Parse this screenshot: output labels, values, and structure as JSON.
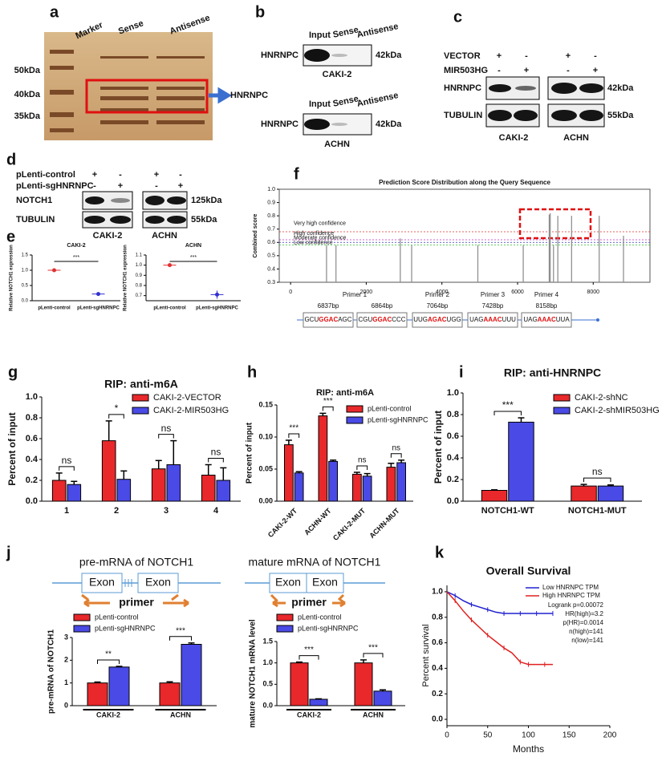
{
  "figure": {
    "letters": [
      "a",
      "b",
      "c",
      "d",
      "e",
      "f",
      "g",
      "h",
      "i",
      "j",
      "k"
    ],
    "a": {
      "lanes": [
        "Marker",
        "Sense",
        "Antisense"
      ],
      "markers": [
        "50kDa",
        "40kDa",
        "35kDa"
      ],
      "target": "HNRNPC"
    },
    "b": {
      "lanes": [
        "Input",
        "Sense",
        "Antisense"
      ],
      "protein": "HNRNPC",
      "size": "42kDa",
      "cells": [
        "CAKI-2",
        "ACHN"
      ]
    },
    "c": {
      "conditions": [
        "VECTOR",
        "MIR503HG"
      ],
      "signs": [
        [
          "+",
          "-",
          "+",
          "-"
        ],
        [
          "-",
          "+",
          "-",
          "+"
        ]
      ],
      "proteins": [
        "HNRNPC",
        "TUBULIN"
      ],
      "sizes": [
        "42kDa",
        "55kDa"
      ],
      "cells": [
        "CAKI-2",
        "ACHN"
      ]
    },
    "d": {
      "conditions": [
        "pLenti-control",
        "pLenti-sgHNRNPC"
      ],
      "signs": [
        [
          "+",
          "-",
          "+",
          "-"
        ],
        [
          "-",
          "+",
          "-",
          "+"
        ]
      ],
      "proteins": [
        "NOTCH1",
        "TUBULIN"
      ],
      "sizes": [
        "125kDa",
        "55kDa"
      ],
      "cells": [
        "CAKI-2",
        "ACHN"
      ]
    },
    "j": {
      "pre_title": "pre-mRNA of NOTCH1",
      "mature_title": "mature mRNA of NOTCH1",
      "exon": "Exon",
      "primer": "primer"
    }
  },
  "chart_data": [
    {
      "type": "dot",
      "title": "CAKI-2",
      "ylabel": "Relative NOTCH1 expression",
      "categories": [
        "pLenti-control",
        "pLenti-sgHNRNPC"
      ],
      "values": [
        1.0,
        0.22
      ],
      "errors": [
        0.04,
        0.01
      ],
      "colors": [
        "#e03030",
        "#3030d0"
      ],
      "significance": "***",
      "ylim": [
        0,
        1.5
      ],
      "yticks": [
        {
          "value": 0,
          "label": "0.0"
        },
        0.5,
        {
          "value": 1,
          "label": "1.0"
        },
        1.5
      ]
    },
    {
      "type": "dot",
      "title": "ACHN",
      "ylabel": "Relative NOTCH1 expression",
      "categories": [
        "pLenti-control",
        "pLenti-sgHNRNPC"
      ],
      "values": [
        1.0,
        0.71
      ],
      "errors": [
        0.005,
        0.04
      ],
      "colors": [
        "#e03030",
        "#3030d0"
      ],
      "significance": "***",
      "ylim": [
        0.65,
        1.1
      ],
      "yticks": [
        0.7,
        0.8,
        0.9,
        {
          "value": 1,
          "label": "1.0"
        },
        1.1
      ]
    },
    {
      "type": "spike",
      "title": "Prediction Score Distribution along the Query Sequence",
      "ylabel": "Combined score",
      "color": "#888888",
      "x": [
        950,
        1200,
        2900,
        3200,
        4950,
        6150,
        6837,
        6864,
        6950,
        7064,
        7428,
        8158,
        8800
      ],
      "values": [
        0.58,
        0.58,
        0.63,
        0.58,
        0.58,
        0.58,
        0.81,
        0.82,
        0.58,
        0.8,
        0.8,
        0.8,
        0.65
      ],
      "xlim": [
        -300,
        9500
      ],
      "xticks": [
        0,
        2000,
        4000,
        6000,
        8000
      ],
      "ylim": [
        0.3,
        1.0
      ],
      "yticks": [
        0.3,
        0.4,
        0.5,
        0.6,
        0.7,
        0.8,
        0.9,
        {
          "value": 1,
          "label": "1.0"
        }
      ],
      "thresholds": [
        {
          "label": "Very high confidence",
          "value": 0.68,
          "color": "#e03030"
        },
        {
          "label": "High confidence",
          "value": 0.62,
          "color": "#c030c0"
        },
        {
          "label": "Moderate confidence",
          "value": 0.6,
          "color": "#3030c0"
        },
        {
          "label": "Low confidence",
          "value": 0.58,
          "color": "#30c030"
        }
      ],
      "primer_names": [
        "Primer 1",
        "Primer 2",
        "Primer 3",
        "Primer 4"
      ],
      "sites": [
        {
          "position": "6837bp",
          "pre": "GCU",
          "motif": "GGAC",
          "post": "AGC"
        },
        {
          "position": "6864bp",
          "pre": "CGU",
          "motif": "GGAC",
          "post": "CCC"
        },
        {
          "position": "7064bp",
          "pre": "UUG",
          "motif": "AGAC",
          "post": "UGG"
        },
        {
          "position": "7428bp",
          "pre": "UAG",
          "motif": "AAAC",
          "post": "UUU"
        },
        {
          "position": "8158bp",
          "pre": "UAG",
          "motif": "AAAC",
          "post": "UUA"
        }
      ]
    },
    {
      "type": "bar",
      "title": "RIP: anti-m6A",
      "ylabel": "Percent of input",
      "categories": [
        "1",
        "2",
        "3",
        "4"
      ],
      "series": [
        {
          "name": "CAKI-2-VECTOR",
          "color": "#e8282b",
          "values": [
            0.2,
            0.58,
            0.31,
            0.25
          ],
          "errors": [
            0.07,
            0.19,
            0.08,
            0.1
          ]
        },
        {
          "name": "CAKI-2-MIR503HG",
          "color": "#4a4ae6",
          "values": [
            0.16,
            0.21,
            0.35,
            0.2
          ],
          "errors": [
            0.03,
            0.08,
            0.23,
            0.12
          ]
        }
      ],
      "significance": [
        "ns",
        "*",
        "ns",
        "ns"
      ],
      "ylim": [
        0,
        1.0
      ],
      "yticks": [
        {
          "value": 0,
          "label": "0.0"
        },
        0.2,
        0.4,
        0.6,
        0.8,
        {
          "value": 1,
          "label": "1.0"
        }
      ]
    },
    {
      "type": "bar",
      "title": "RIP: anti-m6A",
      "ylabel": "Percent of input",
      "categories": [
        "CAKI-2-WT",
        "ACHN-WT",
        "CAKI-2-MUT",
        "ACHN-MUT"
      ],
      "series": [
        {
          "name": "pLenti-control",
          "color": "#e8282b",
          "values": [
            0.088,
            0.133,
            0.042,
            0.053
          ],
          "errors": [
            0.007,
            0.004,
            0.003,
            0.006
          ]
        },
        {
          "name": "pLenti-sgHNRNPC",
          "color": "#4a4ae6",
          "values": [
            0.044,
            0.062,
            0.039,
            0.06
          ],
          "errors": [
            0.002,
            0.002,
            0.004,
            0.004
          ]
        }
      ],
      "significance": [
        "***",
        "***",
        "ns",
        "ns"
      ],
      "ylim": [
        0,
        0.15
      ],
      "yticks": [
        {
          "value": 0,
          "label": "0.00"
        },
        0.05,
        {
          "value": 0.1,
          "label": "0.10"
        },
        0.15
      ]
    },
    {
      "type": "bar",
      "title": "RIP: anti-HNRNPC",
      "ylabel": "Percent of input",
      "categories": [
        "NOTCH1-WT",
        "NOTCH1-MUT"
      ],
      "series": [
        {
          "name": "CAKI-2-shNC",
          "color": "#e8282b",
          "values": [
            0.1,
            0.14
          ],
          "errors": [
            0.005,
            0.015
          ]
        },
        {
          "name": "CAKI-2-shMIR503HG",
          "color": "#4a4ae6",
          "values": [
            0.73,
            0.14
          ],
          "errors": [
            0.04,
            0.01
          ]
        }
      ],
      "significance": [
        "***",
        "ns"
      ],
      "ylim": [
        0,
        1.0
      ],
      "yticks": [
        {
          "value": 0,
          "label": "0.0"
        },
        0.2,
        0.4,
        0.6,
        0.8,
        {
          "value": 1,
          "label": "1.0"
        }
      ]
    },
    {
      "type": "bar",
      "ylabel": "pre-mRNA of NOTCH1",
      "categories": [
        "CAKI-2",
        "ACHN"
      ],
      "series": [
        {
          "name": "pLenti-control",
          "color": "#e8282b",
          "values": [
            1.0,
            1.0
          ],
          "errors": [
            0.04,
            0.05
          ]
        },
        {
          "name": "pLenti-sgHNRNPC",
          "color": "#4a4ae6",
          "values": [
            1.7,
            2.7
          ],
          "errors": [
            0.03,
            0.06
          ]
        }
      ],
      "significance": [
        "**",
        "***"
      ],
      "ylim": [
        0,
        3
      ],
      "yticks": [
        0,
        1,
        2,
        3
      ]
    },
    {
      "type": "bar",
      "ylabel": "mature NOTCH1 mRNA level",
      "categories": [
        "CAKI-2",
        "ACHN"
      ],
      "series": [
        {
          "name": "pLenti-control",
          "color": "#e8282b",
          "values": [
            1.0,
            1.0
          ],
          "errors": [
            0.02,
            0.07
          ]
        },
        {
          "name": "pLenti-sgHNRNPC",
          "color": "#4a4ae6",
          "values": [
            0.15,
            0.34
          ],
          "errors": [
            0.01,
            0.03
          ]
        }
      ],
      "significance": [
        "***",
        "***"
      ],
      "ylim": [
        0,
        1.5
      ],
      "yticks": [
        {
          "value": 0,
          "label": "0.0"
        },
        0.5,
        {
          "value": 1,
          "label": "1.0"
        },
        1.5
      ]
    },
    {
      "type": "survival",
      "title": "Overall Survival",
      "xlabel": "Months",
      "ylabel": "Percent survival",
      "xlim": [
        0,
        200
      ],
      "xticks": [
        0,
        50,
        100,
        150,
        200
      ],
      "ylim": [
        -0.05,
        1.05
      ],
      "yticks": [
        {
          "value": 0,
          "label": "0.0"
        },
        0.2,
        0.4,
        0.6,
        0.8,
        {
          "value": 1,
          "label": "1.0"
        }
      ],
      "series": [
        {
          "name": "Low HNRNPC TPM",
          "color": "#2020d0",
          "x": [
            0,
            10,
            20,
            30,
            40,
            50,
            60,
            70,
            80,
            90,
            100,
            110,
            120,
            130
          ],
          "values": [
            1,
            0.97,
            0.93,
            0.9,
            0.88,
            0.86,
            0.84,
            0.83,
            0.83,
            0.83,
            0.83,
            0.83,
            0.83,
            0.83
          ]
        },
        {
          "name": "High HNRNPC TPM",
          "color": "#e02020",
          "x": [
            0,
            10,
            20,
            30,
            40,
            50,
            60,
            70,
            80,
            90,
            95,
            100,
            110,
            120,
            130
          ],
          "values": [
            1,
            0.93,
            0.85,
            0.78,
            0.72,
            0.66,
            0.61,
            0.56,
            0.52,
            0.45,
            0.44,
            0.43,
            0.43,
            0.43,
            0.43
          ]
        }
      ],
      "stats": [
        "Logrank p=0.00072",
        "HR(high)=3.2",
        "p(HR)=0.0014",
        "n(high)=141",
        "n(low)=141"
      ]
    }
  ]
}
